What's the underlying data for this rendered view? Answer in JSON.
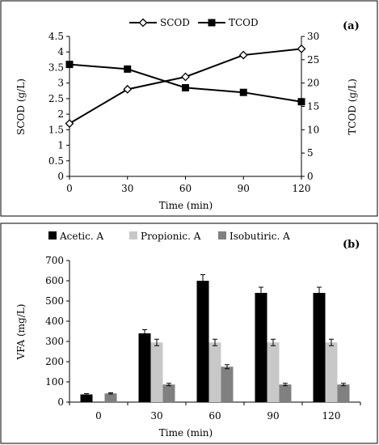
{
  "chart_data": [
    {
      "type": "line",
      "panel_label": "(a)",
      "xlabel": "Time (min)",
      "ylabel": "SCOD (g/L)",
      "y2label": "TCOD (g/L)",
      "x": [
        0,
        30,
        60,
        90,
        120
      ],
      "xticks": [
        "0",
        "30",
        "60",
        "90",
        "120"
      ],
      "ylim": [
        0,
        4.5
      ],
      "yticks": [
        "0",
        "0.5",
        "1",
        "1.5",
        "2",
        "2.5",
        "3",
        "3.5",
        "4",
        "4.5"
      ],
      "y2lim": [
        0,
        30
      ],
      "y2ticks": [
        "0",
        "5",
        "10",
        "15",
        "20",
        "25",
        "30"
      ],
      "legend_position": "top",
      "series": [
        {
          "name": "SCOD",
          "axis": "left",
          "marker": "diamond-open",
          "values": [
            1.7,
            2.8,
            3.2,
            3.9,
            4.1
          ]
        },
        {
          "name": "TCOD",
          "axis": "right",
          "marker": "square-filled",
          "values": [
            24,
            23,
            19,
            18,
            16
          ]
        }
      ]
    },
    {
      "type": "bar",
      "panel_label": "(b)",
      "xlabel": "Time (min)",
      "ylabel": "VFA (mg/L)",
      "categories": [
        "0",
        "30",
        "60",
        "90",
        "120"
      ],
      "ylim": [
        0,
        700
      ],
      "yticks": [
        "0",
        "100",
        "200",
        "300",
        "400",
        "500",
        "600",
        "700"
      ],
      "legend_position": "top",
      "series": [
        {
          "name": "Acetic. A",
          "color": "#000000",
          "values": [
            38,
            340,
            600,
            540,
            540
          ],
          "errors": [
            4,
            18,
            30,
            28,
            28
          ]
        },
        {
          "name": "Propionic. A",
          "color": "#c8c8c8",
          "values": [
            0,
            295,
            295,
            295,
            295
          ],
          "errors": [
            0,
            16,
            16,
            16,
            16
          ]
        },
        {
          "name": "Isobutiric. A",
          "color": "#808080",
          "values": [
            43,
            87,
            175,
            87,
            87
          ],
          "errors": [
            3,
            6,
            10,
            6,
            6
          ]
        }
      ]
    }
  ]
}
